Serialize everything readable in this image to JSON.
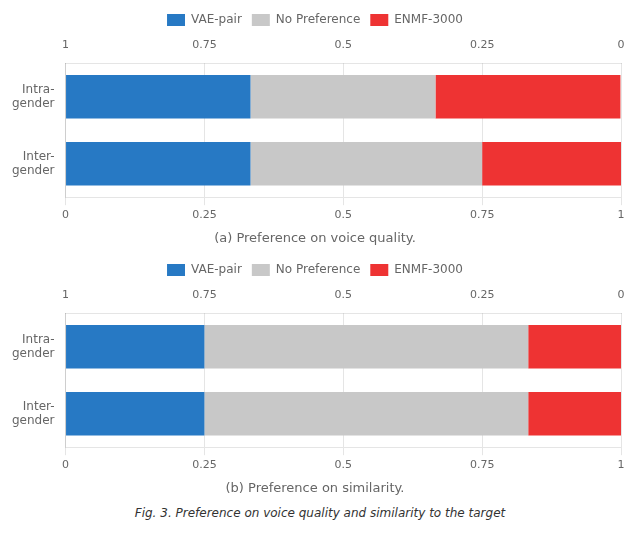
{
  "chart_data": [
    {
      "type": "bar",
      "orientation": "horizontal",
      "stacked": true,
      "title": "(a) Preference on voice quality.",
      "categories": [
        "Intra-\ngender",
        "Inter-\ngender"
      ],
      "series": [
        {
          "name": "VAE-pair",
          "color": "#2779C4",
          "values": [
            0.333,
            0.333
          ]
        },
        {
          "name": "No Preference",
          "color": "#C8C8C8",
          "values": [
            0.333,
            0.417
          ]
        },
        {
          "name": "ENMF-3000",
          "color": "#EE3333",
          "values": [
            0.333,
            0.25
          ]
        }
      ],
      "xlim": [
        0,
        1
      ],
      "xticks": [
        0,
        0.25,
        0.5,
        0.75,
        1
      ],
      "x2lim": [
        1,
        0
      ],
      "x2ticks": [
        1,
        0.75,
        0.5,
        0.25,
        0
      ],
      "grid": true,
      "legend": "top"
    },
    {
      "type": "bar",
      "orientation": "horizontal",
      "stacked": true,
      "title": "(b) Preference on similarity.",
      "categories": [
        "Intra-\ngender",
        "Inter-\ngender"
      ],
      "series": [
        {
          "name": "VAE-pair",
          "color": "#2779C4",
          "values": [
            0.25,
            0.25
          ]
        },
        {
          "name": "No Preference",
          "color": "#C8C8C8",
          "values": [
            0.583,
            0.583
          ]
        },
        {
          "name": "ENMF-3000",
          "color": "#EE3333",
          "values": [
            0.167,
            0.167
          ]
        }
      ],
      "xlim": [
        0,
        1
      ],
      "xticks": [
        0,
        0.25,
        0.5,
        0.75,
        1
      ],
      "x2lim": [
        1,
        0
      ],
      "x2ticks": [
        1,
        0.75,
        0.5,
        0.25,
        0
      ],
      "grid": true,
      "legend": "top"
    }
  ],
  "caption": "Fig. 3. Preference on voice quality and similarity to the target"
}
